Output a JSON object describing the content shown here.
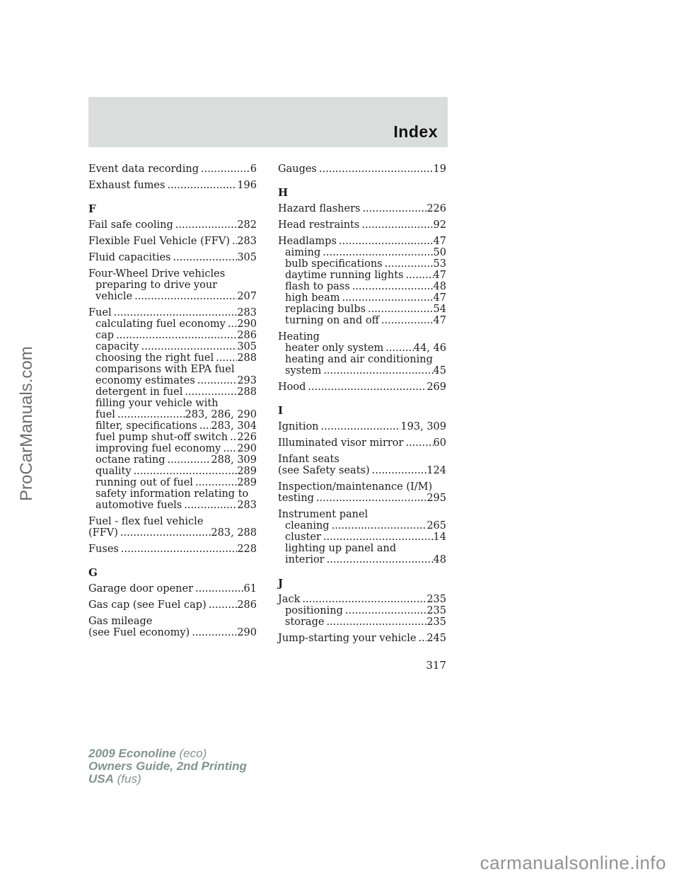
{
  "header": {
    "title": "Index"
  },
  "page_number": "317",
  "watermarks": {
    "side": "ProCarManuals.com",
    "bottom": "carmanualsonline.info"
  },
  "footer": {
    "line1_bold": "2009 Econoline",
    "line1_normal": "(eco)",
    "line2_bold": "Owners Guide, 2nd Printing",
    "line3_bold": "USA",
    "line3_normal": "(fus)"
  },
  "colors": {
    "header_bar": "#d9dedc",
    "footer_text": "#82948f",
    "watermark": "#929292",
    "sidebar_text": "#6d6d6d"
  },
  "index": {
    "left": [
      {
        "kind": "entry",
        "lines": [
          {
            "text": "Event data recording",
            "indent": 0,
            "page": "6"
          }
        ]
      },
      {
        "kind": "entry",
        "lines": [
          {
            "text": "Exhaust fumes",
            "indent": 0,
            "page": "196"
          }
        ]
      },
      {
        "kind": "heading",
        "text": "F"
      },
      {
        "kind": "entry",
        "lines": [
          {
            "text": "Fail safe cooling",
            "indent": 0,
            "page": "282"
          }
        ]
      },
      {
        "kind": "entry",
        "lines": [
          {
            "text": "Flexible Fuel Vehicle (FFV)",
            "indent": 0,
            "page": "283"
          }
        ]
      },
      {
        "kind": "entry",
        "lines": [
          {
            "text": "Fluid capacities",
            "indent": 0,
            "page": "305"
          }
        ]
      },
      {
        "kind": "entry",
        "lines": [
          {
            "text": "Four-Wheel Drive vehicles",
            "indent": 0
          },
          {
            "text": "preparing to drive your",
            "indent": 1
          },
          {
            "text": "vehicle",
            "indent": 1,
            "page": "207"
          }
        ]
      },
      {
        "kind": "entry",
        "lines": [
          {
            "text": "Fuel",
            "indent": 0,
            "page": "283"
          },
          {
            "text": "calculating fuel economy",
            "indent": 1,
            "page": "290"
          },
          {
            "text": "cap",
            "indent": 1,
            "page": "286"
          },
          {
            "text": "capacity",
            "indent": 1,
            "page": "305"
          },
          {
            "text": "choosing the right fuel",
            "indent": 1,
            "page": "288"
          },
          {
            "text": "comparisons with EPA fuel",
            "indent": 1
          },
          {
            "text": "economy estimates",
            "indent": 1,
            "page": "293"
          },
          {
            "text": "detergent in fuel",
            "indent": 1,
            "page": "288"
          },
          {
            "text": "filling your vehicle with",
            "indent": 1
          },
          {
            "text": "fuel",
            "indent": 1,
            "page": "283, 286, 290"
          },
          {
            "text": "filter, specifications",
            "indent": 1,
            "page": "283, 304"
          },
          {
            "text": "fuel pump shut-off switch",
            "indent": 1,
            "page": "226"
          },
          {
            "text": "improving fuel economy",
            "indent": 1,
            "page": "290"
          },
          {
            "text": "octane rating",
            "indent": 1,
            "page": "288, 309"
          },
          {
            "text": "quality",
            "indent": 1,
            "page": "289"
          },
          {
            "text": "running out of fuel",
            "indent": 1,
            "page": "289"
          },
          {
            "text": "safety information relating to",
            "indent": 1
          },
          {
            "text": "automotive fuels",
            "indent": 1,
            "page": "283"
          }
        ]
      },
      {
        "kind": "entry",
        "lines": [
          {
            "text": "Fuel - flex fuel vehicle",
            "indent": 0
          },
          {
            "text": "(FFV)",
            "indent": 0,
            "page": "283, 288"
          }
        ]
      },
      {
        "kind": "entry",
        "lines": [
          {
            "text": "Fuses",
            "indent": 0,
            "page": "228"
          }
        ]
      },
      {
        "kind": "heading",
        "text": "G"
      },
      {
        "kind": "entry",
        "lines": [
          {
            "text": "Garage door opener",
            "indent": 0,
            "page": "61"
          }
        ]
      },
      {
        "kind": "entry",
        "lines": [
          {
            "text": "Gas cap (see Fuel cap)",
            "indent": 0,
            "page": "286"
          }
        ]
      },
      {
        "kind": "entry",
        "lines": [
          {
            "text": "Gas mileage",
            "indent": 0
          },
          {
            "text": "(see Fuel economy)",
            "indent": 0,
            "page": "290"
          }
        ]
      }
    ],
    "right": [
      {
        "kind": "entry",
        "lines": [
          {
            "text": "Gauges",
            "indent": 0,
            "page": "19"
          }
        ]
      },
      {
        "kind": "heading",
        "text": "H"
      },
      {
        "kind": "entry",
        "lines": [
          {
            "text": "Hazard flashers",
            "indent": 0,
            "page": "226"
          }
        ]
      },
      {
        "kind": "entry",
        "lines": [
          {
            "text": "Head restraints",
            "indent": 0,
            "page": "92"
          }
        ]
      },
      {
        "kind": "entry",
        "lines": [
          {
            "text": "Headlamps",
            "indent": 0,
            "page": "47"
          },
          {
            "text": "aiming",
            "indent": 1,
            "page": "50"
          },
          {
            "text": "bulb specifications",
            "indent": 1,
            "page": "53"
          },
          {
            "text": "daytime running lights",
            "indent": 1,
            "page": "47"
          },
          {
            "text": "flash to pass",
            "indent": 1,
            "page": "48"
          },
          {
            "text": "high beam",
            "indent": 1,
            "page": "47"
          },
          {
            "text": "replacing bulbs",
            "indent": 1,
            "page": "54"
          },
          {
            "text": "turning on and off",
            "indent": 1,
            "page": "47"
          }
        ]
      },
      {
        "kind": "entry",
        "lines": [
          {
            "text": "Heating",
            "indent": 0
          },
          {
            "text": "heater only system",
            "indent": 1,
            "page": "44, 46"
          },
          {
            "text": "heating and air conditioning",
            "indent": 1
          },
          {
            "text": "system",
            "indent": 1,
            "page": "45"
          }
        ]
      },
      {
        "kind": "entry",
        "lines": [
          {
            "text": "Hood",
            "indent": 0,
            "page": "269"
          }
        ]
      },
      {
        "kind": "heading",
        "text": "I"
      },
      {
        "kind": "entry",
        "lines": [
          {
            "text": "Ignition",
            "indent": 0,
            "page": "193, 309"
          }
        ]
      },
      {
        "kind": "entry",
        "lines": [
          {
            "text": "Illuminated visor mirror",
            "indent": 0,
            "page": "60"
          }
        ]
      },
      {
        "kind": "entry",
        "lines": [
          {
            "text": "Infant seats",
            "indent": 0
          },
          {
            "text": "(see Safety seats)",
            "indent": 0,
            "page": "124"
          }
        ]
      },
      {
        "kind": "entry",
        "lines": [
          {
            "text": "Inspection/maintenance (I/M)",
            "indent": 0
          },
          {
            "text": "testing",
            "indent": 0,
            "page": "295"
          }
        ]
      },
      {
        "kind": "entry",
        "lines": [
          {
            "text": "Instrument panel",
            "indent": 0
          },
          {
            "text": "cleaning",
            "indent": 1,
            "page": "265"
          },
          {
            "text": "cluster",
            "indent": 1,
            "page": "14"
          },
          {
            "text": "lighting up panel and",
            "indent": 1
          },
          {
            "text": "interior",
            "indent": 1,
            "page": "48"
          }
        ]
      },
      {
        "kind": "heading",
        "text": "J"
      },
      {
        "kind": "entry",
        "lines": [
          {
            "text": "Jack",
            "indent": 0,
            "page": "235"
          },
          {
            "text": "positioning",
            "indent": 1,
            "page": "235"
          },
          {
            "text": "storage",
            "indent": 1,
            "page": "235"
          }
        ]
      },
      {
        "kind": "entry",
        "lines": [
          {
            "text": "Jump-starting your vehicle",
            "indent": 0,
            "page": "245"
          }
        ]
      }
    ]
  }
}
